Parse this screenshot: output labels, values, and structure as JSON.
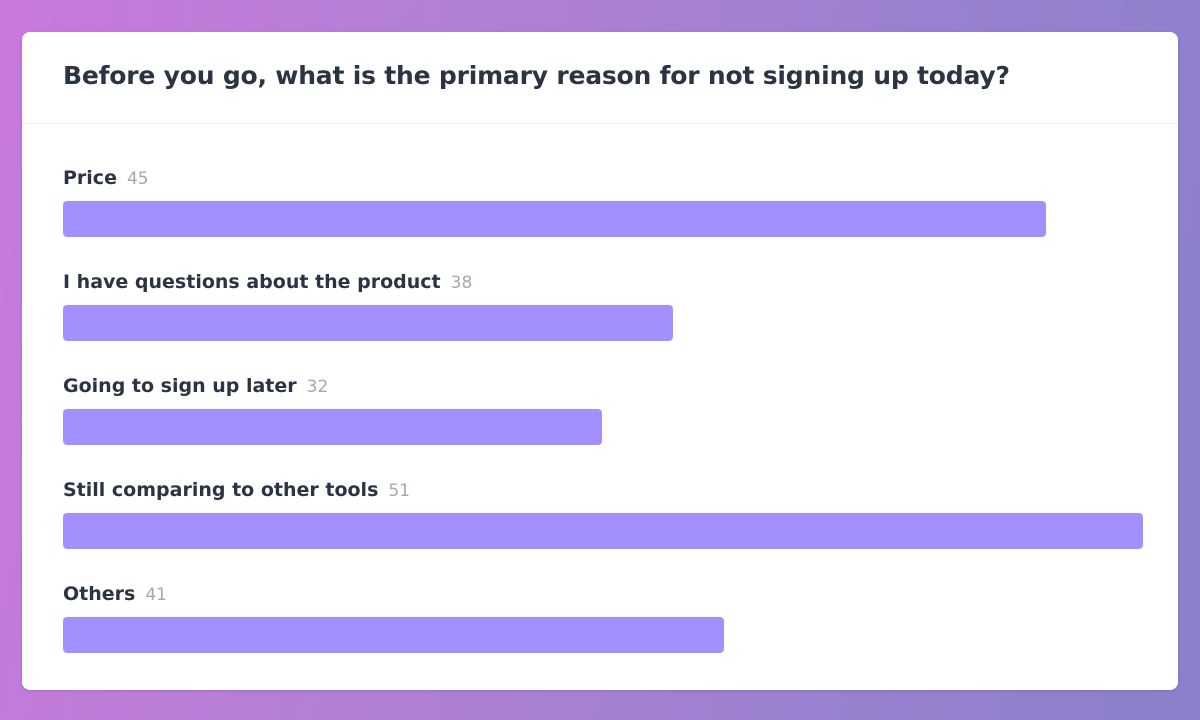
{
  "survey": {
    "question": "Before you go, what is the primary reason for not signing up today?"
  },
  "colors": {
    "bar": "#a38ffd",
    "label": "#2b3444",
    "count": "#a3a8b1"
  },
  "chart_data": {
    "type": "bar",
    "orientation": "horizontal",
    "title": "Before you go, what is the primary reason for not signing up today?",
    "categories": [
      "Price",
      "I have questions about the product",
      "Going to sign up later",
      "Still comparing to other tools",
      "Others"
    ],
    "values": [
      45,
      38,
      32,
      51,
      41
    ],
    "bar_fraction": [
      0.91,
      0.565,
      0.499,
      1.0,
      0.612
    ],
    "grid": false,
    "legend": "none"
  }
}
